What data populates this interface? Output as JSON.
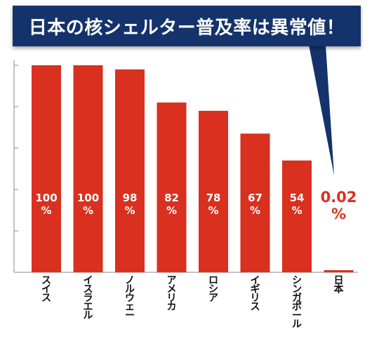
{
  "title": "日本の核シェルター普及率は異常値！",
  "colors": {
    "bar": "#d9301f",
    "banner": "#14336c",
    "label_inside": "#ffffff",
    "label_outside": "#d9301f",
    "axis": "#888888"
  },
  "chart_data": {
    "type": "bar",
    "title": "日本の核シェルター普及率は異常値！",
    "categories": [
      "スイス",
      "イスラエル",
      "ノルウェー",
      "アメリカ",
      "ロシア",
      "イギリス",
      "シンガポール",
      "日本"
    ],
    "values": [
      100,
      100,
      98,
      82,
      78,
      67,
      54,
      0.02
    ],
    "value_labels": [
      [
        "100",
        "%"
      ],
      [
        "100",
        "%"
      ],
      [
        "98",
        "%"
      ],
      [
        "82",
        "%"
      ],
      [
        "78",
        "%"
      ],
      [
        "67",
        "%"
      ],
      [
        "54",
        "%"
      ],
      [
        "0.02",
        "%"
      ]
    ],
    "xlabel": "",
    "ylabel": "",
    "ylim": [
      0,
      100
    ],
    "grid": false,
    "legend": "none"
  }
}
